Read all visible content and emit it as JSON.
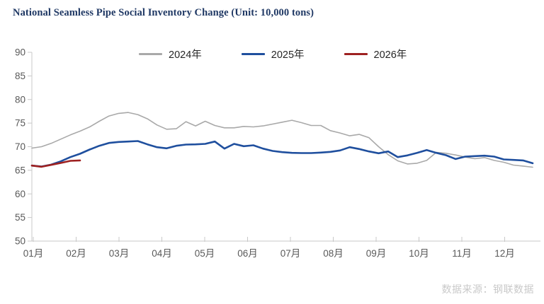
{
  "title": "National Seamless Pipe Social Inventory Change (Unit: 10,000 tons)",
  "watermark": "数据来源：钢联数据",
  "colors": {
    "title": "#1f3864",
    "axis_line": "#c8c8c8",
    "tick_text": "#595959",
    "watermark": "#c9c9c9"
  },
  "chart_data": {
    "type": "line",
    "title": "National Seamless Pipe Social Inventory Change",
    "unit": "10,000 tons",
    "frequency": "weekly",
    "grid": false,
    "legend_position": "top",
    "ylim": [
      50,
      90
    ],
    "y_ticks": [
      90,
      85,
      80,
      75,
      70,
      65,
      60,
      55,
      50
    ],
    "x_tick_labels": [
      "01月",
      "02月",
      "03月",
      "04月",
      "05月",
      "06月",
      "07月",
      "08月",
      "09月",
      "10月",
      "11月",
      "12月"
    ],
    "series": [
      {
        "name": "2024年",
        "color": "#a9a9a9",
        "line_width": 1.6,
        "values": [
          69.7,
          70.0,
          70.7,
          71.6,
          72.5,
          73.3,
          74.2,
          75.4,
          76.5,
          77.05,
          77.25,
          76.8,
          75.9,
          74.6,
          73.7,
          73.8,
          75.3,
          74.4,
          75.4,
          74.5,
          74.0,
          74.0,
          74.3,
          74.2,
          74.4,
          74.8,
          75.2,
          75.6,
          75.1,
          74.5,
          74.5,
          73.4,
          72.9,
          72.3,
          72.6,
          71.9,
          70.0,
          68.3,
          67.0,
          66.35,
          66.5,
          67.1,
          68.8,
          68.6,
          68.25,
          67.8,
          67.45,
          67.7,
          67.1,
          66.7,
          66.1,
          65.9,
          65.65
        ]
      },
      {
        "name": "2025年",
        "color": "#1f4f9e",
        "line_width": 2.6,
        "values": [
          66.0,
          65.8,
          66.2,
          66.9,
          67.8,
          68.5,
          69.4,
          70.2,
          70.8,
          71.0,
          71.1,
          71.2,
          70.5,
          69.9,
          69.65,
          70.2,
          70.45,
          70.5,
          70.6,
          71.1,
          69.6,
          70.6,
          70.1,
          70.3,
          69.6,
          69.1,
          68.85,
          68.7,
          68.65,
          68.65,
          68.75,
          68.9,
          69.2,
          69.9,
          69.5,
          69.0,
          68.6,
          69.0,
          67.8,
          68.15,
          68.7,
          69.3,
          68.7,
          68.2,
          67.4,
          67.9,
          68.0,
          68.1,
          67.9,
          67.3,
          67.2,
          67.1,
          66.5
        ]
      },
      {
        "name": "2026年",
        "color": "#9e2121",
        "line_width": 2.6,
        "values": [
          66.0,
          65.75,
          66.15,
          66.55,
          67.0,
          67.1
        ]
      }
    ]
  }
}
